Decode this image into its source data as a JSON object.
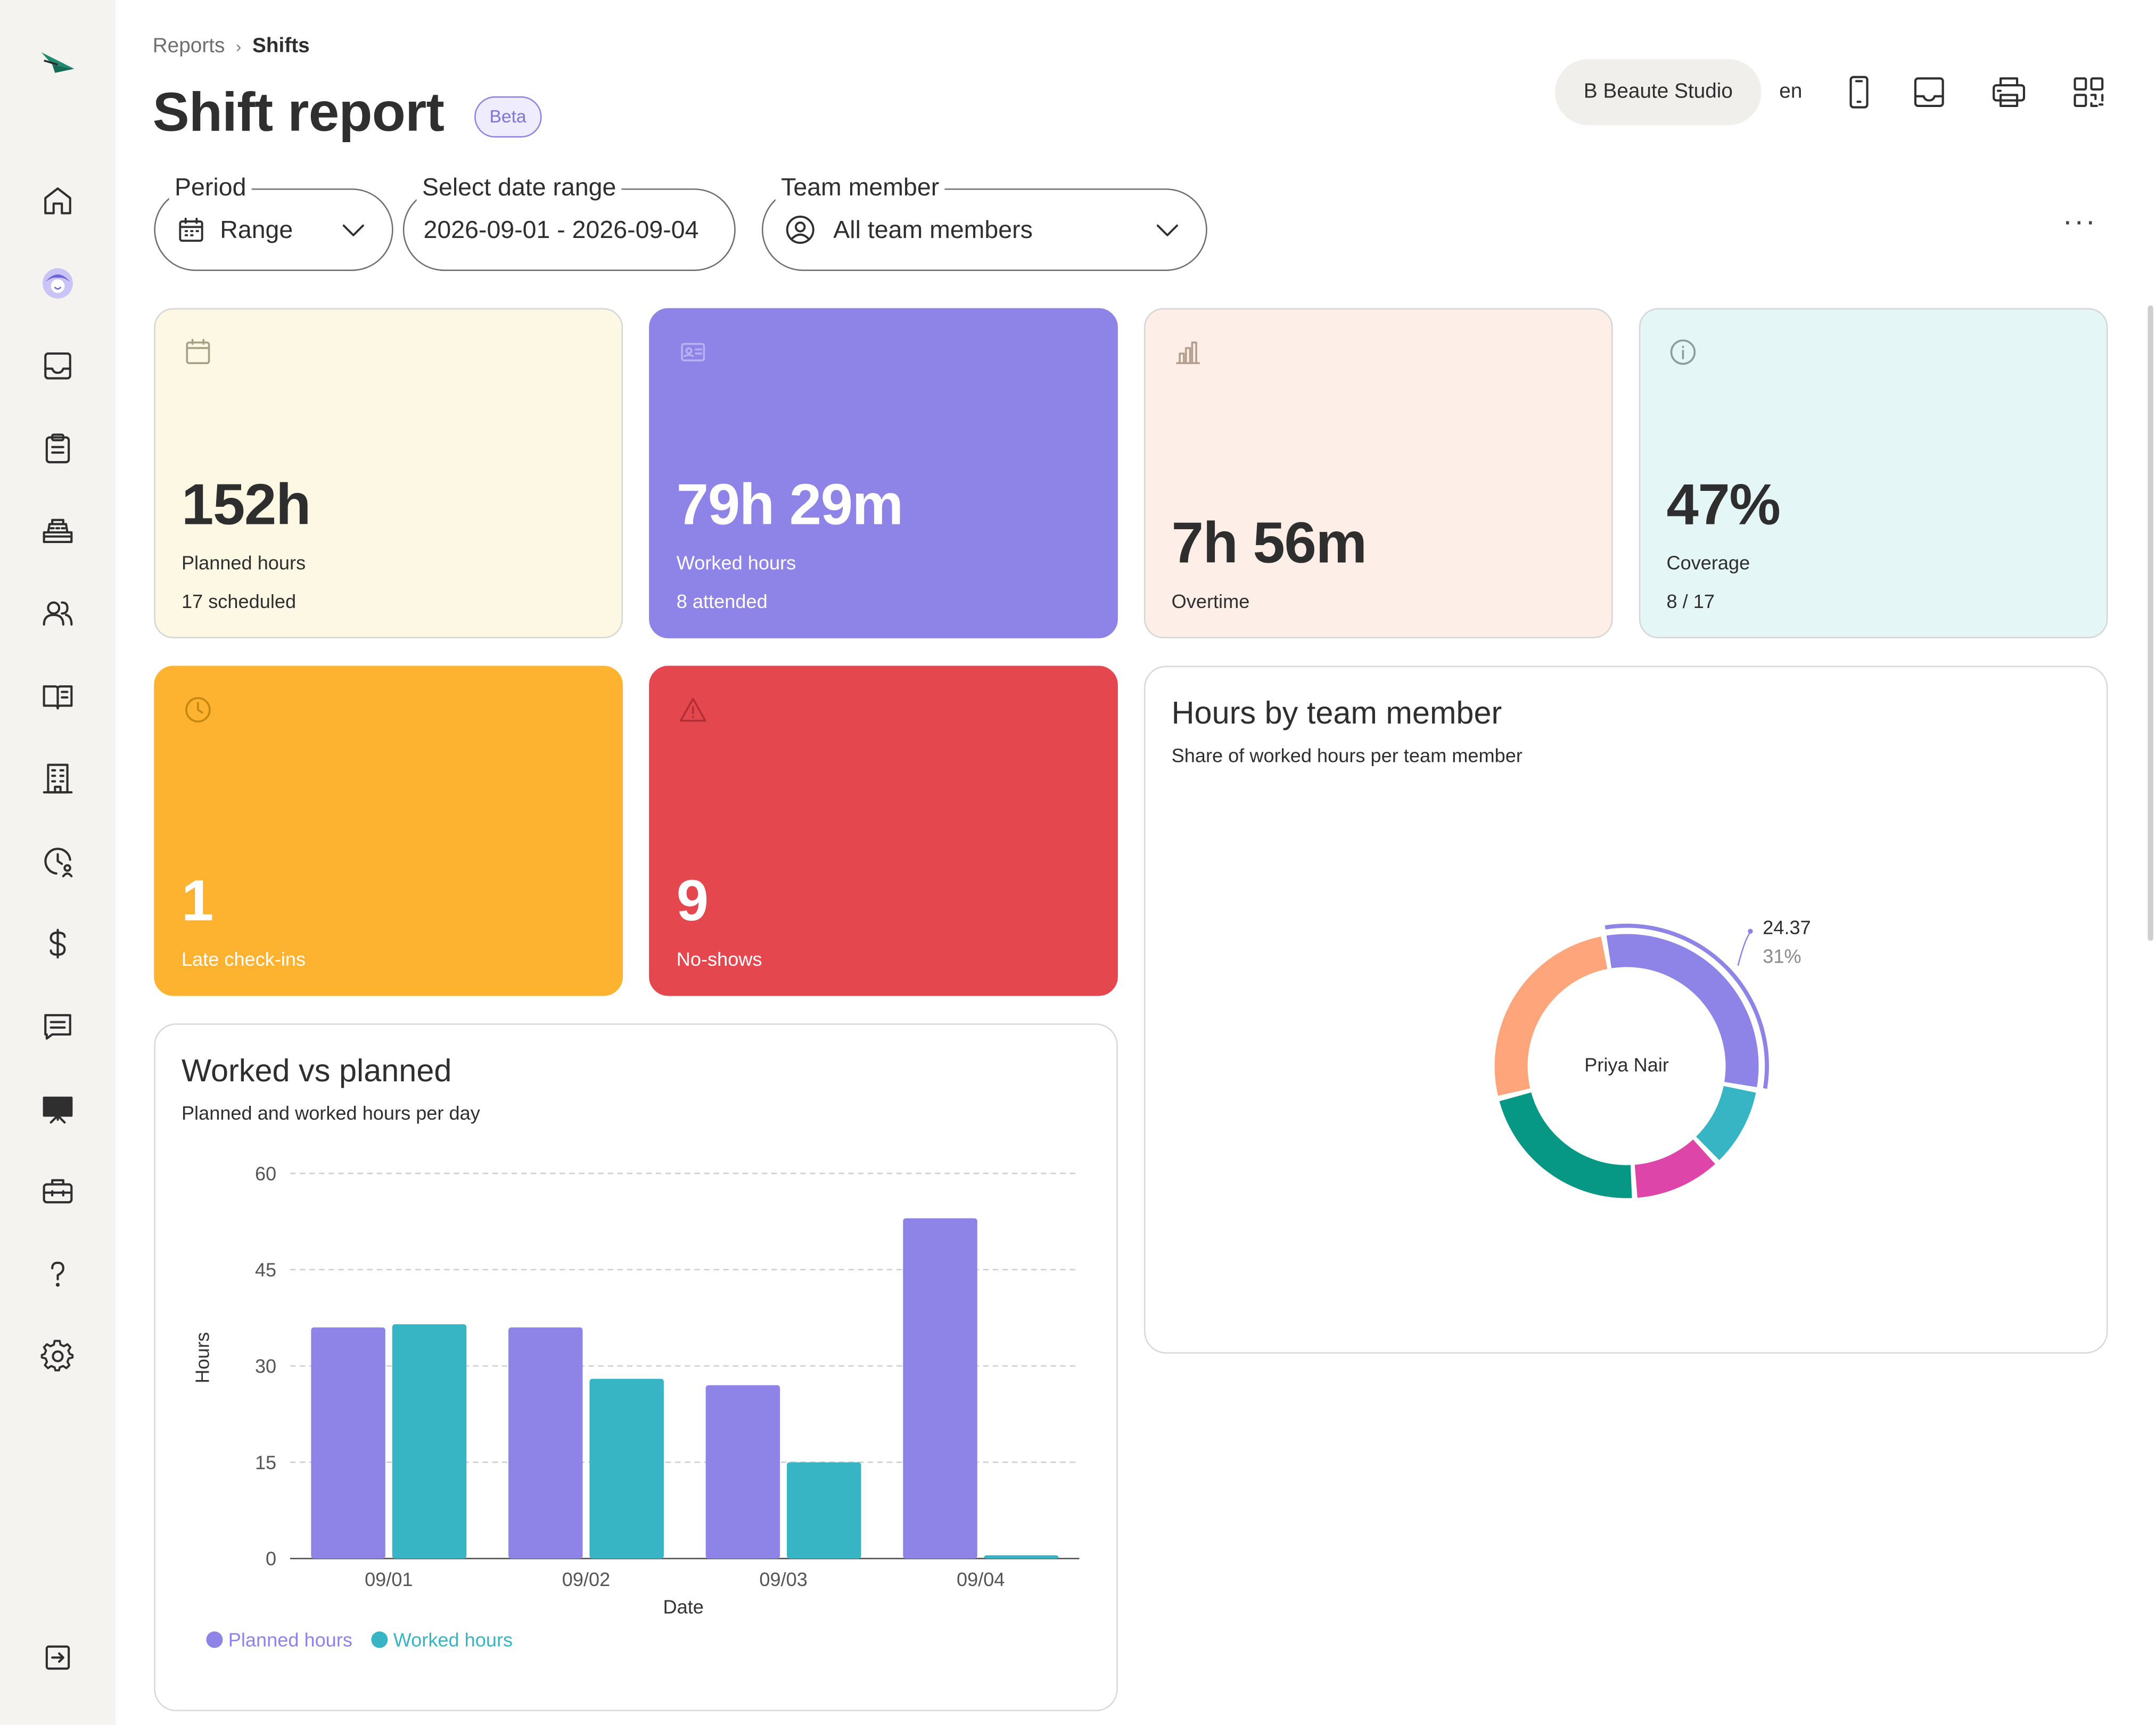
{
  "breadcrumb": {
    "parent": "Reports",
    "separator": "›",
    "current": "Shifts"
  },
  "page": {
    "title": "Shift report",
    "badge": "Beta"
  },
  "header": {
    "studio": "B Beaute Studio",
    "language": "en"
  },
  "filters": {
    "period": {
      "label": "Period",
      "value": "Range"
    },
    "date_range": {
      "label": "Select date range",
      "value": "2026-09-01 - 2026-09-04"
    },
    "team_member": {
      "label": "Team member",
      "value": "All team members"
    },
    "more": "···"
  },
  "sidebar": {
    "items": [
      {
        "name": "home-icon"
      },
      {
        "name": "avatar-icon"
      },
      {
        "name": "inbox-icon"
      },
      {
        "name": "clipboard-icon"
      },
      {
        "name": "register-icon"
      },
      {
        "name": "team-icon"
      },
      {
        "name": "book-icon"
      },
      {
        "name": "building-icon"
      },
      {
        "name": "clock-user-icon"
      },
      {
        "name": "dollar-icon"
      },
      {
        "name": "message-icon"
      },
      {
        "name": "presentation-icon"
      },
      {
        "name": "briefcase-icon"
      },
      {
        "name": "help-icon"
      },
      {
        "name": "settings-icon"
      },
      {
        "name": "collapse-icon"
      }
    ]
  },
  "cards": {
    "planned": {
      "value": "152h",
      "label": "Planned hours",
      "sub": "17 scheduled",
      "color": "#fdf8e4",
      "icon": "calendar-icon"
    },
    "worked": {
      "value": "79h 29m",
      "label": "Worked hours",
      "sub": "8 attended",
      "color": "#8e83e6",
      "icon": "id-card-icon"
    },
    "overtime": {
      "value": "7h 56m",
      "label": "Overtime",
      "color": "#fdefe8",
      "icon": "bar-chart-icon"
    },
    "coverage": {
      "value": "47%",
      "label": "Coverage",
      "sub": "8 / 17",
      "color": "#e4f6f6",
      "icon": "info-icon"
    },
    "late": {
      "value": "1",
      "label": "Late check-ins",
      "color": "#fdb32f",
      "icon": "clock-icon"
    },
    "noshow": {
      "value": "9",
      "label": "No-shows",
      "color": "#e4474e",
      "icon": "warning-icon"
    }
  },
  "worked_vs_planned": {
    "title": "Worked vs planned",
    "subtitle": "Planned and worked hours per day"
  },
  "hours_by_member": {
    "title": "Hours by team member",
    "subtitle": "Share of worked hours per team member",
    "center_label": "Priya Nair",
    "callout_value": "24.37",
    "callout_pct": "31%"
  },
  "chart_data": [
    {
      "type": "bar",
      "title": "Worked vs planned",
      "xlabel": "Date",
      "ylabel": "Hours",
      "ylim": [
        0,
        60
      ],
      "yticks": [
        "0",
        "15",
        "30",
        "45",
        "60"
      ],
      "categories": [
        "09/01",
        "09/02",
        "09/03",
        "09/04"
      ],
      "series": [
        {
          "name": "Planned hours",
          "color": "#8e83e6",
          "values": [
            36,
            36,
            27,
            53
          ]
        },
        {
          "name": "Worked hours",
          "color": "#37b5c4",
          "values": [
            36.5,
            28,
            15,
            0.5
          ]
        }
      ],
      "grid": true,
      "legend": "bottom-left"
    },
    {
      "type": "pie",
      "title": "Hours by team member",
      "series": [
        {
          "name": "Priya Nair",
          "value": 24.37,
          "percent": 31,
          "color": "#8e83e6"
        },
        {
          "value": 8.0,
          "color": "#37b5c4"
        },
        {
          "value": 8.8,
          "color": "#dd45a8"
        },
        {
          "value": 17.5,
          "color": "#079785"
        },
        {
          "value": 20.8,
          "color": "#fea57c"
        }
      ]
    }
  ]
}
